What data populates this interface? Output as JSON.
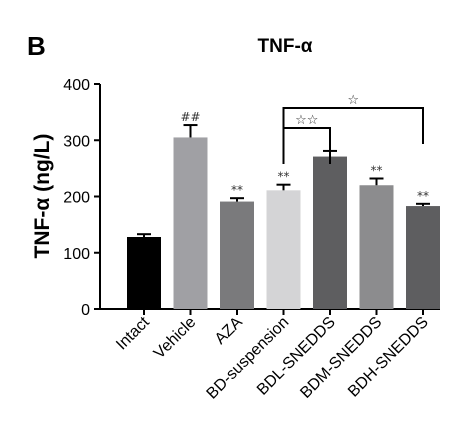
{
  "panel_label": "B",
  "chart_data": {
    "type": "bar",
    "title": "TNF-α",
    "ylabel": "TNF-α (ng/L)",
    "xlabel": "",
    "ylim": [
      0,
      400
    ],
    "yticks": [
      0,
      100,
      200,
      300,
      400
    ],
    "categories": [
      "Intact",
      "Vehicle",
      "AZA",
      "BD-suspension",
      "BDL-SNEDDS",
      "BDM-SNEDDS",
      "BDH-SNEDDS"
    ],
    "values": [
      128,
      305,
      191,
      211,
      271,
      220,
      183
    ],
    "errors": [
      5,
      22,
      6,
      10,
      10,
      12,
      4
    ],
    "bar_colors": [
      "#000000",
      "#a0a0a4",
      "#7a7a7c",
      "#d4d4d6",
      "#5e5e60",
      "#8c8c8e",
      "#5e5e60"
    ],
    "annotations": [
      "",
      "##",
      "**",
      "**",
      "",
      "**",
      "**"
    ],
    "brackets": [
      {
        "from": 3,
        "to": 4,
        "label": "☆☆"
      },
      {
        "from": 3,
        "to": 6,
        "label": "☆"
      }
    ]
  }
}
